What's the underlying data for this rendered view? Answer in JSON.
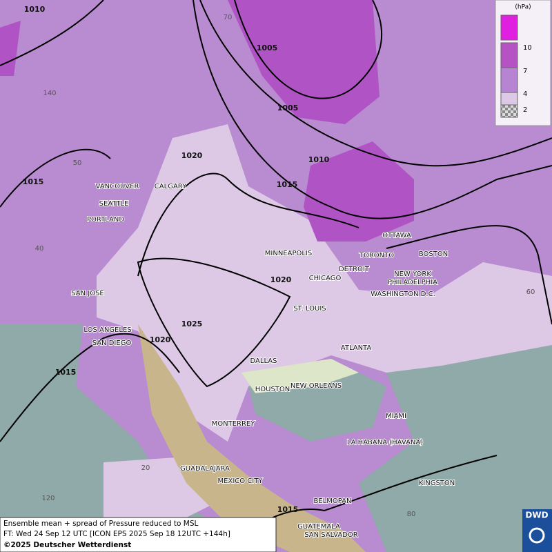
{
  "title_lines": [
    "Ensemble mean + spread of Pressure reduced to MSL",
    "FT: Wed 24 Sep 12 UTC [ICON EPS 2025 Sep 18 12UTC +144h]",
    "©2025 Deutscher Wetterdienst"
  ],
  "logo": "DWD",
  "legend": {
    "unit": "(hPa)",
    "ticks": [
      "10",
      "7",
      "4",
      "2"
    ],
    "colors": [
      "#e01fe0",
      "#b653c4",
      "#b684d2",
      "#ddc8e6"
    ]
  },
  "isobars": [
    "1010",
    "1005",
    "1005",
    "1010",
    "1015",
    "1020",
    "1015",
    "1020",
    "1025",
    "1020",
    "1015",
    "1015"
  ],
  "graticule": [
    "70",
    "140",
    "50",
    "40",
    "60",
    "20",
    "120",
    "80"
  ],
  "cities": [
    "VANCOUVER",
    "CALGARY",
    "SEATTLE",
    "PORTLAND",
    "MINNEAPOLIS",
    "OTTAWA",
    "TORONTO",
    "BOSTON",
    "DETROIT",
    "CHICAGO",
    "NEW YORK",
    "PHILADELPHIA",
    "WASHINGTON D.C.",
    "SAN JOSE",
    "ST. LOUIS",
    "LOS ANGELES",
    "SAN DIEGO",
    "ATLANTA",
    "DALLAS",
    "HOUSTON",
    "NEW ORLEANS",
    "MIAMI",
    "MONTERREY",
    "LA HABANA (HAVANA)",
    "GUADALAJARA",
    "MEXICO CITY",
    "KINGSTON",
    "BELMOPAN",
    "GUATEMALA",
    "SAN SALVADOR"
  ]
}
